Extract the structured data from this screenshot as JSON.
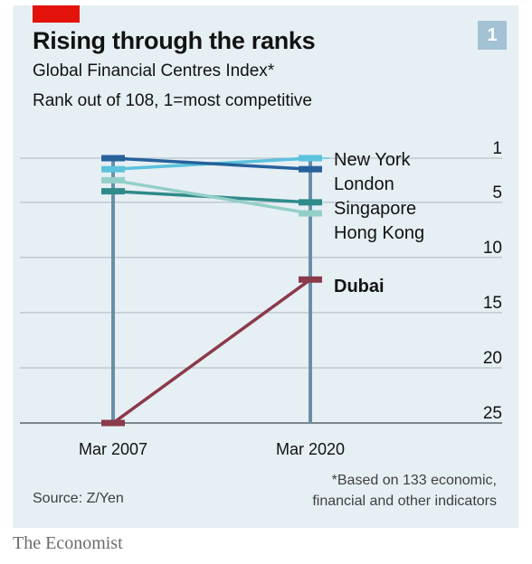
{
  "header": {
    "badge": "1",
    "title": "Rising through the ranks",
    "subtitle": "Global Financial Centres Index*",
    "description": "Rank out of 108, 1=most competitive"
  },
  "footer": {
    "source": "Source: Z/Yen",
    "footnote_lines": [
      "*Based on 133 economic,",
      "financial and other indicators"
    ],
    "brand": "The Economist"
  },
  "colors": {
    "background": "#e6eff4",
    "accent_red": "#e3120b",
    "badge": "#a3c2d3",
    "new_york": "#5bc2dc",
    "london": "#27619b",
    "singapore": "#2f8a8a",
    "hong_kong": "#93cfc8",
    "dubai": "#8b3a4a",
    "gridline": "#a9b7c0",
    "column": "#6a8fa7"
  },
  "chart_data": {
    "type": "slope",
    "x": [
      "Mar 2007",
      "Mar 2020"
    ],
    "y_axis": {
      "ticks": [
        1,
        5,
        10,
        15,
        20,
        25
      ],
      "range": [
        1,
        25
      ],
      "inverted": true,
      "position": "right"
    },
    "grid": true,
    "series": [
      {
        "name": "New York",
        "values": [
          2,
          1
        ],
        "color": "#5bc2dc",
        "bold": false
      },
      {
        "name": "London",
        "values": [
          1,
          2
        ],
        "color": "#27619b",
        "bold": false
      },
      {
        "name": "Singapore",
        "values": [
          4,
          5
        ],
        "color": "#2f8a8a",
        "bold": false
      },
      {
        "name": "Hong Kong",
        "values": [
          3,
          6
        ],
        "color": "#93cfc8",
        "bold": false
      },
      {
        "name": "Dubai",
        "values": [
          25,
          12
        ],
        "color": "#8b3a4a",
        "bold": true
      }
    ]
  }
}
